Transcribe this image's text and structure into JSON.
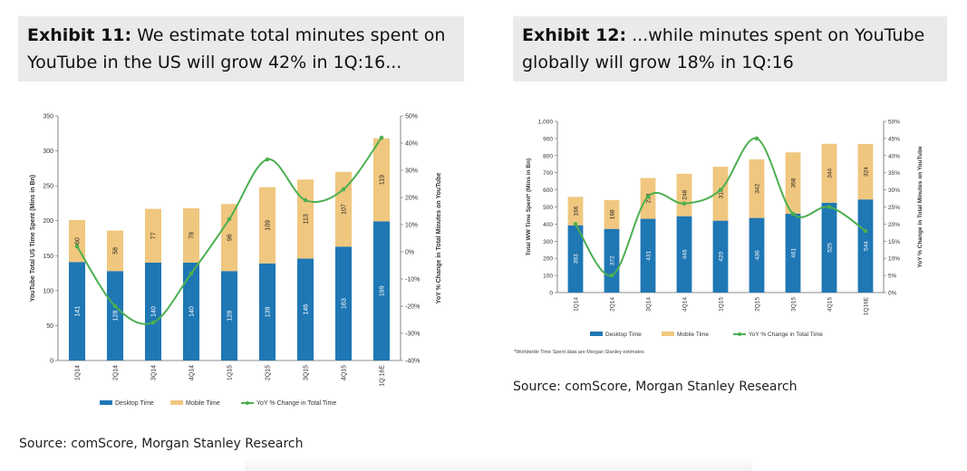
{
  "exhibit_11": {
    "label": "Exhibit 11:",
    "title": "We estimate total minutes spent on YouTube in the US will grow 42% in 1Q:16...",
    "source": "Source: comScore, Morgan Stanley Research"
  },
  "exhibit_12": {
    "label": "Exhibit 12:",
    "title": "...while minutes spent on YouTube globally will grow 18% in 1Q:16",
    "note": "*Worldwide Time Spent data are Morgan Stanley estimates",
    "source": "Source: comScore, Morgan Stanley Research"
  },
  "colors": {
    "desktop": "#1f77b4",
    "mobile": "#f0c77f",
    "yoy": "#4caf50",
    "axis": "#666666"
  },
  "chart_data": [
    {
      "type": "bar",
      "stacked": true,
      "categories": [
        "1Q14",
        "2Q14",
        "3Q14",
        "4Q14",
        "1Q15",
        "2Q15",
        "3Q15",
        "4Q15",
        "1Q:16E"
      ],
      "series": [
        {
          "name": "Desktop Time",
          "values": [
            141,
            128,
            140,
            140,
            128,
            139,
            146,
            163,
            199
          ]
        },
        {
          "name": "Mobile Time",
          "values": [
            60,
            58,
            77,
            78,
            96,
            109,
            113,
            107,
            119
          ]
        },
        {
          "name": "YoY % Change in Total Time",
          "type": "line",
          "axis": "right",
          "values": [
            2,
            -20,
            -26,
            -8,
            12,
            34,
            19,
            23,
            42
          ]
        }
      ],
      "ylabel": "YouTube Total US Time Spent (Mins in Bn)",
      "y2label": "YoY % Change in Total Minutes on YouTube",
      "ylim": [
        0,
        350
      ],
      "yticks": [
        "0",
        "50",
        "100",
        "150",
        "200",
        "250",
        "300",
        "350"
      ],
      "y2lim": [
        -40,
        50
      ],
      "y2ticks": [
        "-40%",
        "-30%",
        "-20%",
        "-10%",
        "0%",
        "10%",
        "20%",
        "30%",
        "40%",
        "50%"
      ],
      "legend": "bottom",
      "grid": false
    },
    {
      "type": "bar",
      "stacked": true,
      "categories": [
        "1Q14",
        "2Q14",
        "3Q14",
        "4Q14",
        "1Q15",
        "2Q15",
        "3Q15",
        "4Q15",
        "1Q16E"
      ],
      "series": [
        {
          "name": "Desktop Time",
          "values": [
            393,
            372,
            431,
            446,
            420,
            436,
            461,
            525,
            544
          ]
        },
        {
          "name": "Mobile Time",
          "values": [
            166,
            168,
            238,
            248,
            315,
            342,
            358,
            344,
            324
          ]
        },
        {
          "name": "YoY % Change in Total Time",
          "type": "line",
          "axis": "right",
          "values": [
            20,
            5,
            28,
            26,
            30,
            45,
            23,
            25,
            18
          ]
        }
      ],
      "ylabel": "Total WW Time Spent* (Mins in Bn)",
      "y2label": "YoY % Change in Total Minutes on YouTube",
      "ylim": [
        0,
        1000
      ],
      "yticks": [
        "0",
        "100",
        "200",
        "300",
        "400",
        "500",
        "600",
        "700",
        "800",
        "900",
        "1,000"
      ],
      "y2lim": [
        0,
        50
      ],
      "y2ticks": [
        "0%",
        "5%",
        "10%",
        "15%",
        "20%",
        "25%",
        "30%",
        "35%",
        "40%",
        "45%",
        "50%"
      ],
      "legend": "bottom",
      "grid": false
    }
  ]
}
